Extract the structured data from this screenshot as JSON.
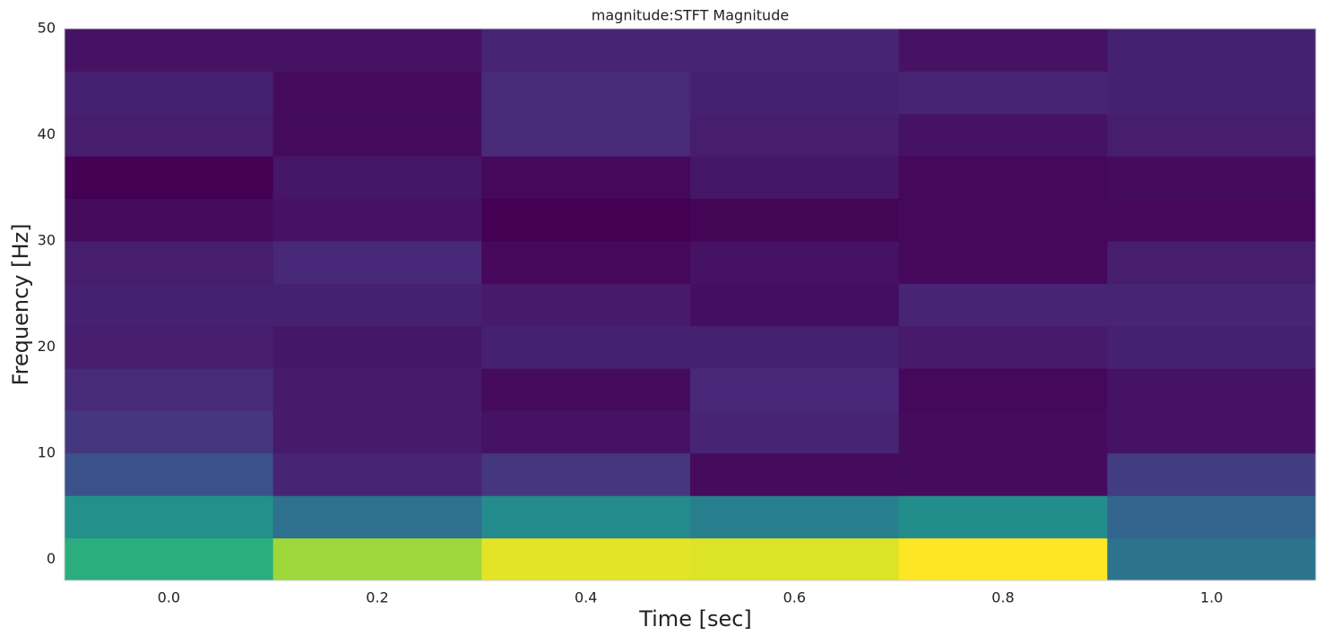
{
  "chart_data": {
    "type": "heatmap",
    "title": "magnitude:STFT Magnitude",
    "x_label": "Time [sec]",
    "y_label": "Frequency [Hz]",
    "colormap": "viridis",
    "x": [
      0,
      0.2,
      0.4,
      0.6,
      0.8,
      1.0
    ],
    "y": [
      0,
      4,
      8,
      12,
      16,
      20,
      24,
      28,
      32,
      36,
      40,
      44,
      48
    ],
    "values": [
      [
        0.62,
        0.85,
        0.96,
        0.95,
        1.0,
        0.38
      ],
      [
        0.5,
        0.37,
        0.48,
        0.43,
        0.49,
        0.32
      ],
      [
        0.25,
        0.1,
        0.16,
        0.03,
        0.03,
        0.18
      ],
      [
        0.16,
        0.07,
        0.05,
        0.1,
        0.03,
        0.05
      ],
      [
        0.12,
        0.07,
        0.03,
        0.11,
        0.02,
        0.05
      ],
      [
        0.08,
        0.06,
        0.09,
        0.09,
        0.07,
        0.09
      ],
      [
        0.09,
        0.09,
        0.07,
        0.04,
        0.1,
        0.1
      ],
      [
        0.08,
        0.11,
        0.02,
        0.05,
        0.02,
        0.08
      ],
      [
        0.03,
        0.05,
        0,
        0.01,
        0.02,
        0.02
      ],
      [
        0,
        0.06,
        0.02,
        0.06,
        0.02,
        0.03
      ],
      [
        0.08,
        0.03,
        0.12,
        0.08,
        0.05,
        0.08
      ],
      [
        0.09,
        0.03,
        0.12,
        0.09,
        0.1,
        0.09
      ],
      [
        0.05,
        0.05,
        0.1,
        0.1,
        0.05,
        0.09
      ]
    ],
    "xlim": [
      -0.1,
      1.1
    ],
    "ylim": [
      -2,
      50
    ],
    "xticks": [
      {
        "value": 0,
        "label": "0.0"
      },
      0.2,
      0.4,
      0.6,
      0.8,
      {
        "value": 1.0,
        "label": "1.0"
      }
    ],
    "yticks": [
      0,
      10,
      20,
      30,
      40,
      50
    ]
  }
}
